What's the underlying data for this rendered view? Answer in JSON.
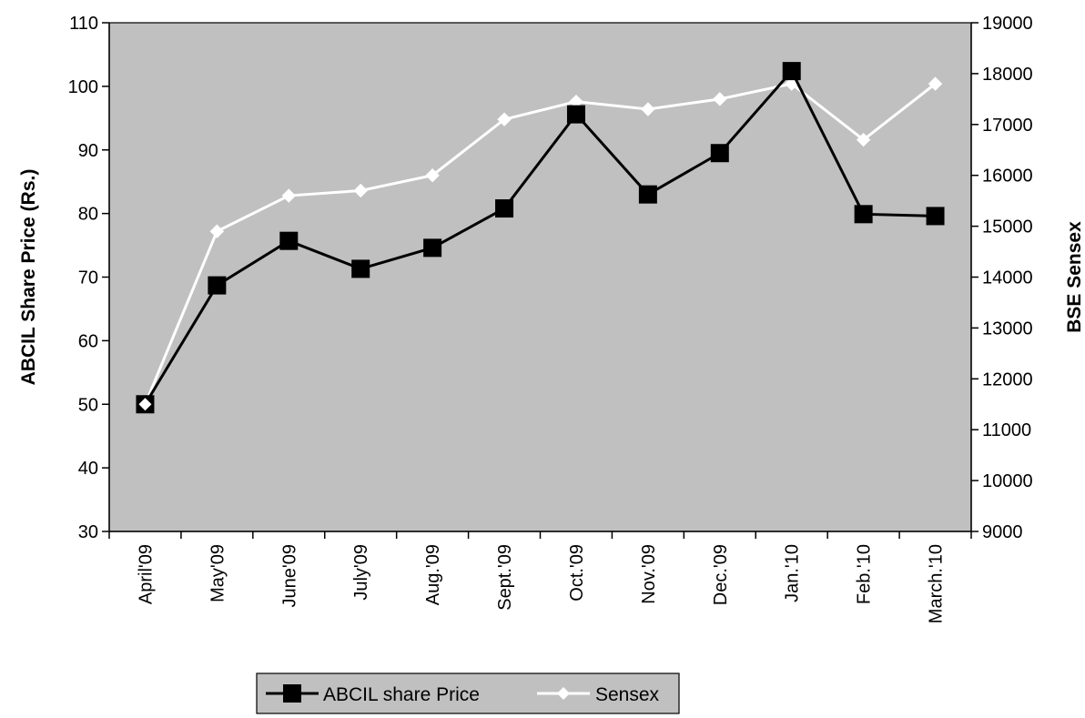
{
  "chart_data": {
    "type": "line",
    "categories": [
      "April'09",
      "May'09",
      "June'09",
      "July'09",
      "Aug.'09",
      "Sept.'09",
      "Oct.'09",
      "Nov.'09",
      "Dec.'09",
      "Jan.'10",
      "Feb.'10",
      "March.'10"
    ],
    "series": [
      {
        "name": "ABCIL share Price",
        "axis": "left",
        "marker": "square",
        "color": "#000000",
        "values": [
          50,
          68.7,
          75.7,
          71.3,
          74.6,
          80.8,
          95.6,
          83,
          89.5,
          102.4,
          79.9,
          79.6
        ]
      },
      {
        "name": "Sensex",
        "axis": "right",
        "marker": "diamond",
        "color": "#ffffff",
        "values": [
          11500,
          14900,
          15600,
          15700,
          16000,
          17100,
          17450,
          17300,
          17500,
          17800,
          16700,
          17800
        ]
      }
    ],
    "ylabel": "ABCIL Share Price (Rs.)",
    "y2label": "BSE Sensex",
    "ylim": [
      30,
      110
    ],
    "y2lim": [
      9000,
      19000
    ],
    "yticks": [
      30,
      40,
      50,
      60,
      70,
      80,
      90,
      100,
      110
    ],
    "y2ticks": [
      9000,
      10000,
      11000,
      12000,
      13000,
      14000,
      15000,
      16000,
      17000,
      18000,
      19000
    ],
    "grid": false,
    "legend_position": "bottom",
    "plot_background": "#c0c0c0"
  }
}
